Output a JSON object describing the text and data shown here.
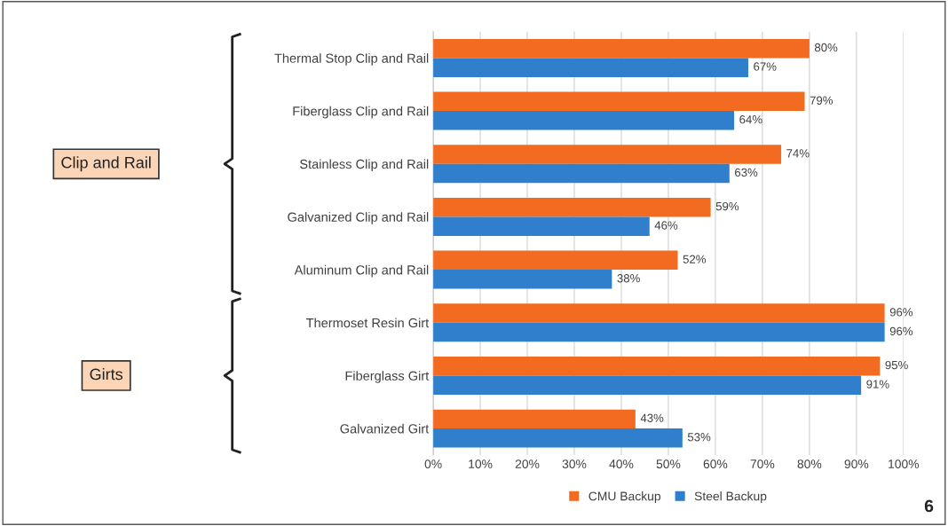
{
  "chart_data": {
    "type": "bar",
    "orientation": "horizontal",
    "categories": [
      "Thermal Stop Clip and Rail",
      "Fiberglass Clip and Rail",
      "Stainless Clip and Rail",
      "Galvanized Clip and Rail",
      "Aluminum Clip and Rail",
      "Thermoset Resin Girt",
      "Fiberglass Girt",
      "Galvanized Girt"
    ],
    "series": [
      {
        "name": "CMU Backup",
        "color": "#f26b21",
        "values": [
          80,
          79,
          74,
          59,
          52,
          96,
          95,
          43
        ],
        "value_labels": [
          "80%",
          "79%",
          "74%",
          "59%",
          "52%",
          "96%",
          "95%",
          "43%"
        ]
      },
      {
        "name": "Steel Backup",
        "color": "#2f7fcc",
        "values": [
          67,
          64,
          63,
          46,
          38,
          96,
          91,
          53
        ],
        "value_labels": [
          "67%",
          "64%",
          "63%",
          "46%",
          "38%",
          "96%",
          "91%",
          "53%"
        ]
      }
    ],
    "xlim": [
      0,
      100
    ],
    "xticks": [
      {
        "value": 0,
        "label": "0%"
      },
      {
        "value": 10,
        "label": "10%"
      },
      {
        "value": 20,
        "label": "20%"
      },
      {
        "value": 30,
        "label": "30%"
      },
      {
        "value": 40,
        "label": "40%"
      },
      {
        "value": 50,
        "label": "50%"
      },
      {
        "value": 60,
        "label": "60%"
      },
      {
        "value": 70,
        "label": "70%"
      },
      {
        "value": 80,
        "label": "80%"
      },
      {
        "value": 90,
        "label": "90%"
      },
      {
        "value": 100,
        "label": "100%"
      }
    ],
    "grid": "x",
    "legend": "bottom",
    "annotations": [
      "Clip and Rail",
      "Girts",
      "6"
    ]
  }
}
